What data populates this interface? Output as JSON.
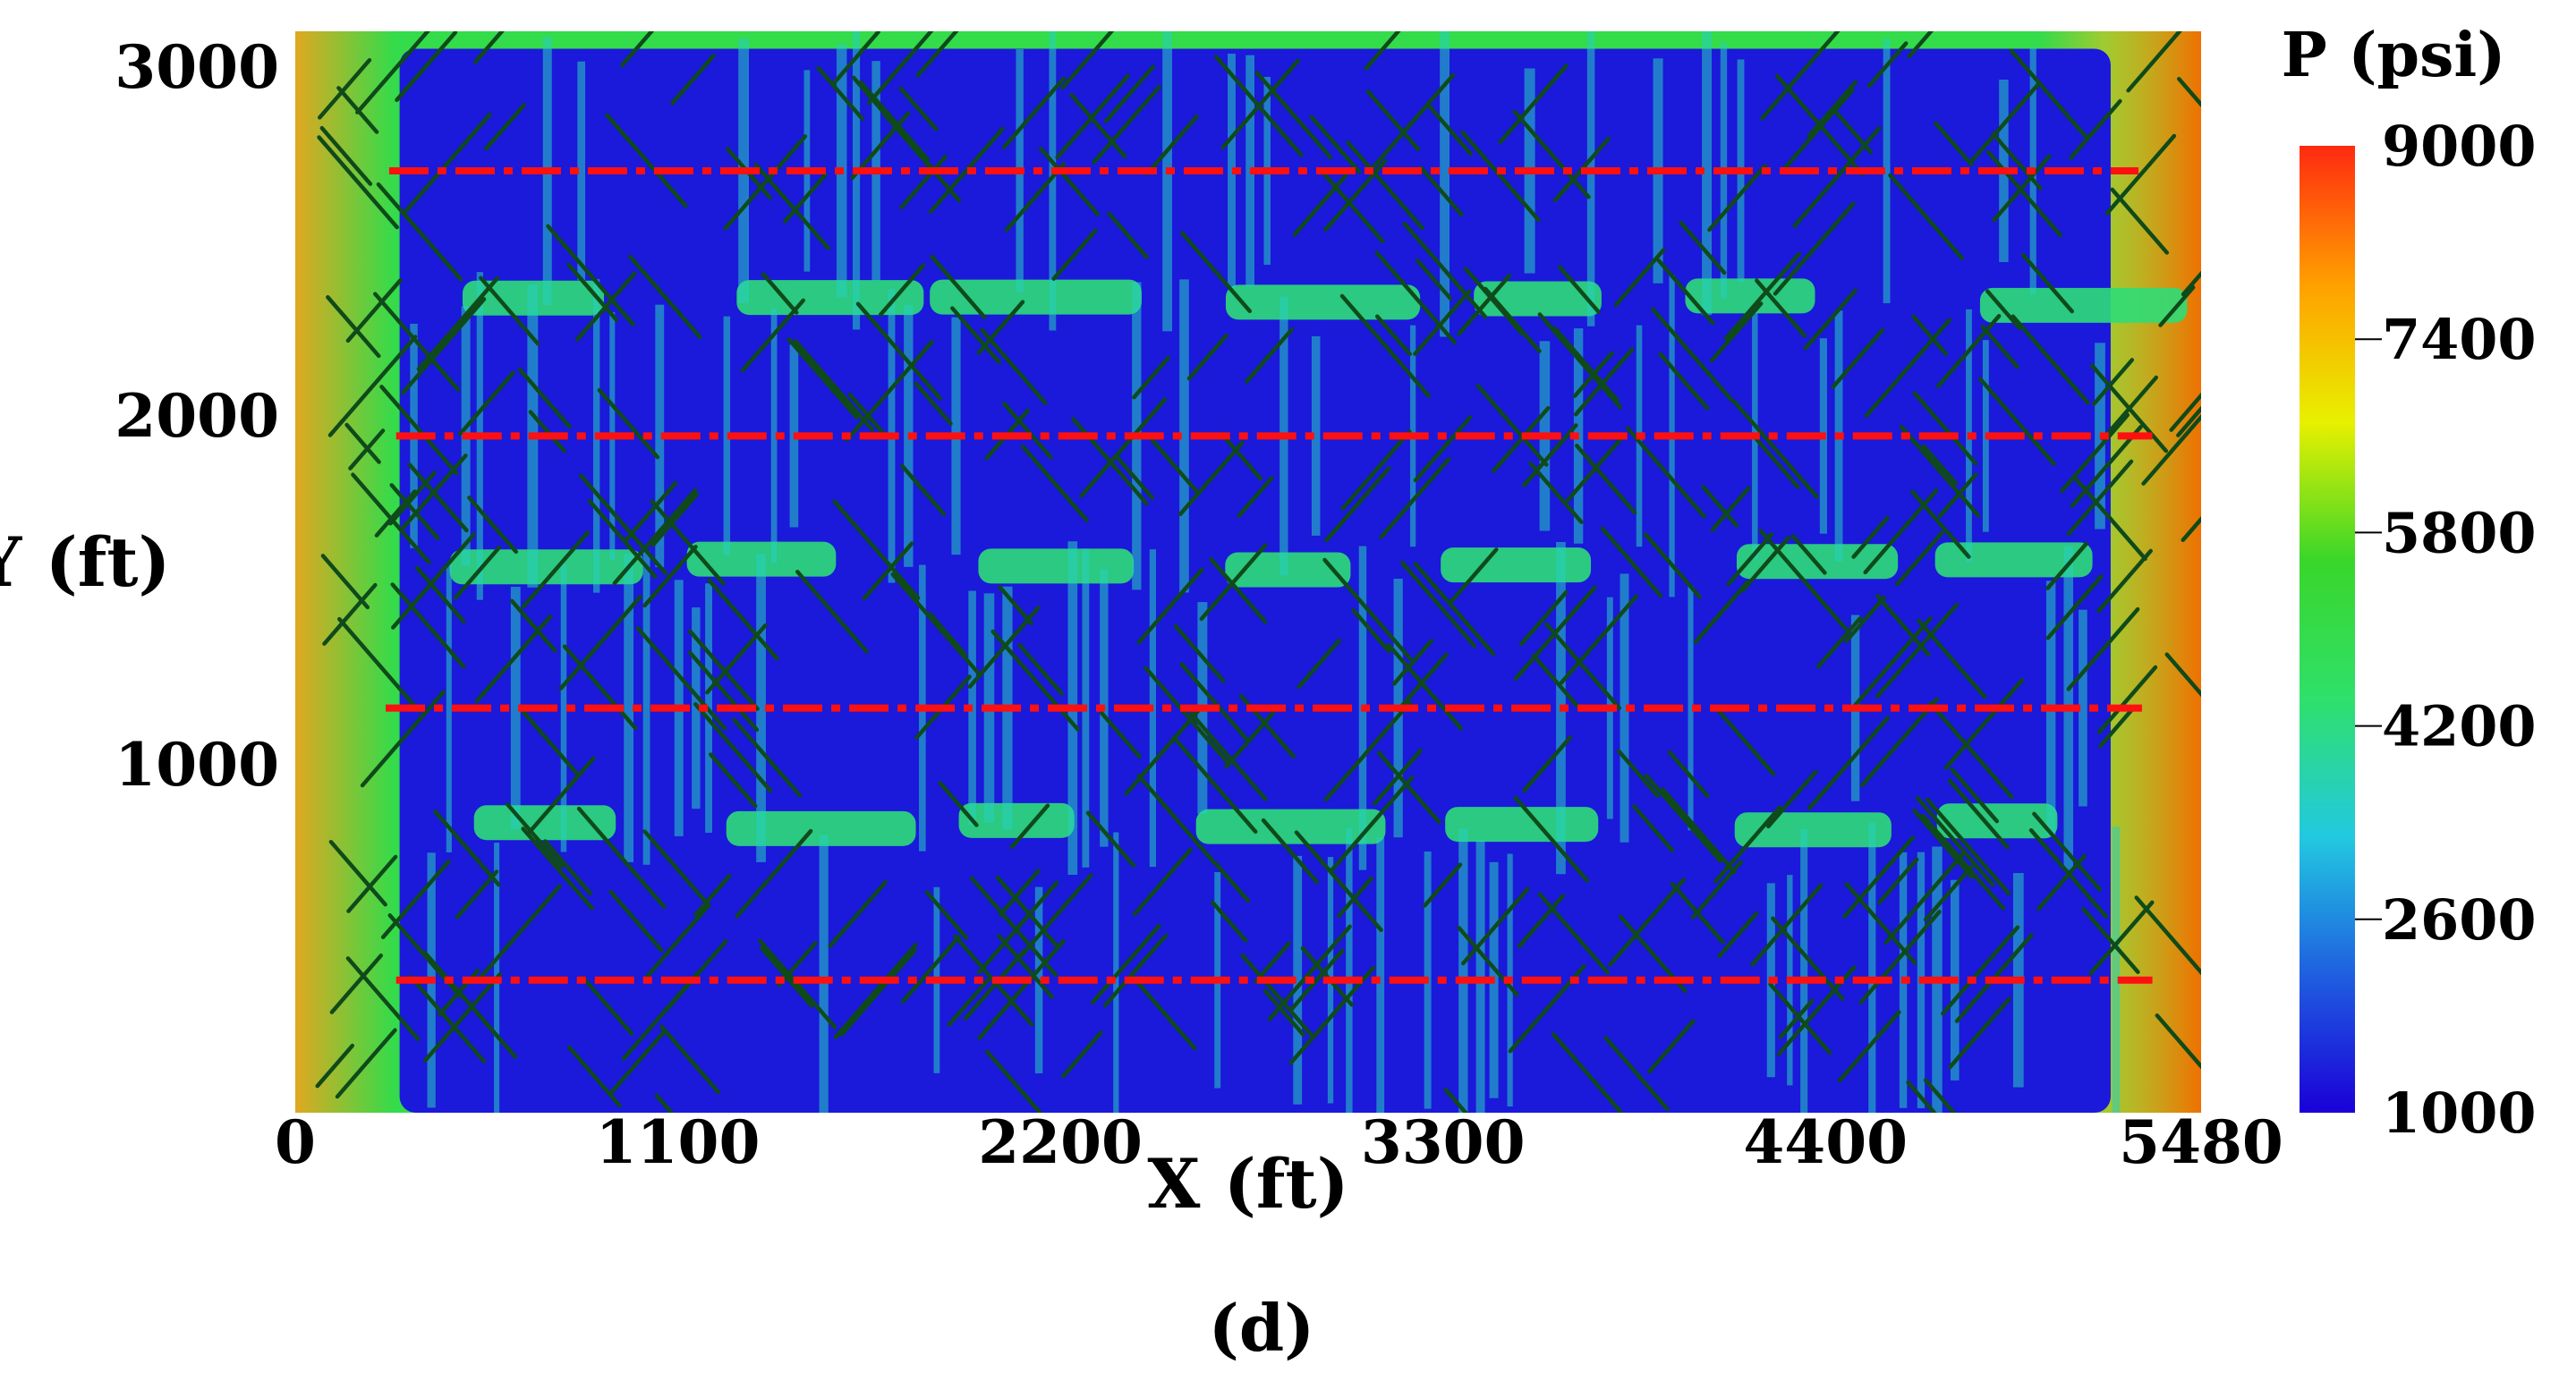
{
  "chart_data": {
    "type": "heatmap",
    "subtitle": "(d)",
    "xlabel": "X (ft)",
    "ylabel": "Y (ft)",
    "xlim": [
      0,
      5480
    ],
    "ylim": [
      0,
      3100
    ],
    "xticks": [
      0,
      1100,
      2200,
      3300,
      4400,
      5480
    ],
    "yticks": [
      1000,
      2000,
      3000
    ],
    "colorbar": {
      "title": "P (psi)",
      "min": 1000,
      "max": 9000,
      "ticks": [
        1000,
        2600,
        4200,
        5800,
        7400,
        9000
      ],
      "colormap": [
        "#1a00d8",
        "#1f5fe0",
        "#22c9e0",
        "#2fe06a",
        "#39d62a",
        "#e8f000",
        "#ffa000",
        "#ff2a10"
      ]
    },
    "field_values": {
      "reservoir_background": 5000,
      "left_boundary": 7000,
      "right_boundary": 7800,
      "stimulated_region": 1300,
      "fracture_channels": 3600,
      "between_wells_bands": 4300
    },
    "wells": [
      {
        "y": 2700,
        "x_start": 270,
        "x_end": 5300
      },
      {
        "y": 1940,
        "x_start": 290,
        "x_end": 5340
      },
      {
        "y": 1160,
        "x_start": 260,
        "x_end": 5310
      },
      {
        "y": 380,
        "x_start": 290,
        "x_end": 5340
      }
    ],
    "well_color": "#ff1010",
    "fracture_color": "#0f4a1a",
    "grid": false
  }
}
